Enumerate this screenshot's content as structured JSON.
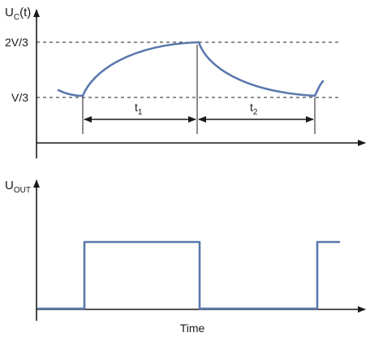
{
  "diagram": {
    "top_axis_label": {
      "main": "U",
      "sub": "C",
      "suffix": "(t)"
    },
    "bottom_axis_label": {
      "main": "U",
      "sub": "OUT"
    },
    "level_high": "2V/3",
    "level_low": "V/3",
    "interval_1": {
      "main": "t",
      "sub": "1"
    },
    "interval_2": {
      "main": "t",
      "sub": "2"
    },
    "x_axis_label": "Time",
    "wave_color": "#5a78ad"
  }
}
